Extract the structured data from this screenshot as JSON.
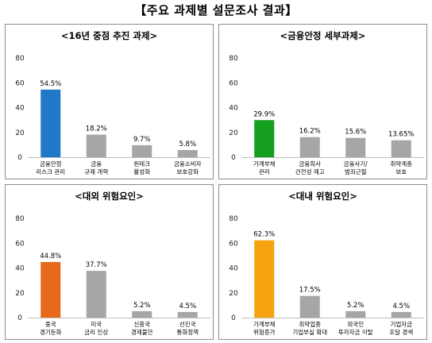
{
  "title": "【주요 과제별 설문조사 결과】",
  "chart_data": [
    {
      "type": "bar",
      "title": "<16년 중점 추진 과제>",
      "categories": [
        [
          "금융안정",
          "리스크 관리"
        ],
        [
          "금융",
          "규제 개혁"
        ],
        [
          "핀테크",
          "활성화"
        ],
        [
          "금융소비자",
          "보호강화"
        ]
      ],
      "values": [
        54.5,
        18.2,
        9.7,
        5.8
      ],
      "value_labels": [
        "54.5%",
        "18.2%",
        "9.7%",
        "5.8%"
      ],
      "colors": [
        "#1f78c8",
        "#a6a6a6",
        "#a6a6a6",
        "#a6a6a6"
      ],
      "yticks": [
        0,
        20,
        40,
        60,
        80
      ],
      "ylim": [
        0,
        80
      ],
      "ylabel": "",
      "xlabel": ""
    },
    {
      "type": "bar",
      "title": "<금융안정 세부과제>",
      "categories": [
        [
          "가계부채",
          "관리"
        ],
        [
          "금융회사",
          "건전성 제고"
        ],
        [
          "금융사기/",
          "범죄근절"
        ],
        [
          "취약계층",
          "보호"
        ]
      ],
      "values": [
        29.9,
        16.2,
        15.6,
        13.65
      ],
      "value_labels": [
        "29.9%",
        "16.2%",
        "15.6%",
        "13.65%"
      ],
      "colors": [
        "#14a01e",
        "#a6a6a6",
        "#a6a6a6",
        "#a6a6a6"
      ],
      "yticks": [
        0,
        20,
        40,
        60,
        80
      ],
      "ylim": [
        0,
        80
      ],
      "ylabel": "",
      "xlabel": ""
    },
    {
      "type": "bar",
      "title": "<대외 위험요인>",
      "categories": [
        [
          "중국",
          "경기둔화"
        ],
        [
          "미국",
          "금리 인상"
        ],
        [
          "신흥국",
          "경제불안"
        ],
        [
          "선진국",
          "통화정책"
        ]
      ],
      "values": [
        44.8,
        37.7,
        5.2,
        4.5
      ],
      "value_labels": [
        "44.8%",
        "37.7%",
        "5.2%",
        "4.5%"
      ],
      "colors": [
        "#e66a1a",
        "#a6a6a6",
        "#a6a6a6",
        "#a6a6a6"
      ],
      "yticks": [
        0,
        20,
        40,
        60,
        80
      ],
      "ylim": [
        0,
        80
      ],
      "ylabel": "",
      "xlabel": ""
    },
    {
      "type": "bar",
      "title": "<대내 위험요인>",
      "categories": [
        [
          "가계부채",
          "위험증가"
        ],
        [
          "취약업종",
          "기업부실 확대"
        ],
        [
          "외국인",
          "투자자금 이탈"
        ],
        [
          "기업자금",
          "조달 경색"
        ]
      ],
      "values": [
        62.3,
        17.5,
        5.2,
        4.5
      ],
      "value_labels": [
        "62.3%",
        "17.5%",
        "5.2%",
        "4.5%"
      ],
      "colors": [
        "#f7a20f",
        "#a6a6a6",
        "#a6a6a6",
        "#a6a6a6"
      ],
      "yticks": [
        0,
        20,
        40,
        60,
        80
      ],
      "ylim": [
        0,
        80
      ],
      "ylabel": "",
      "xlabel": ""
    }
  ]
}
